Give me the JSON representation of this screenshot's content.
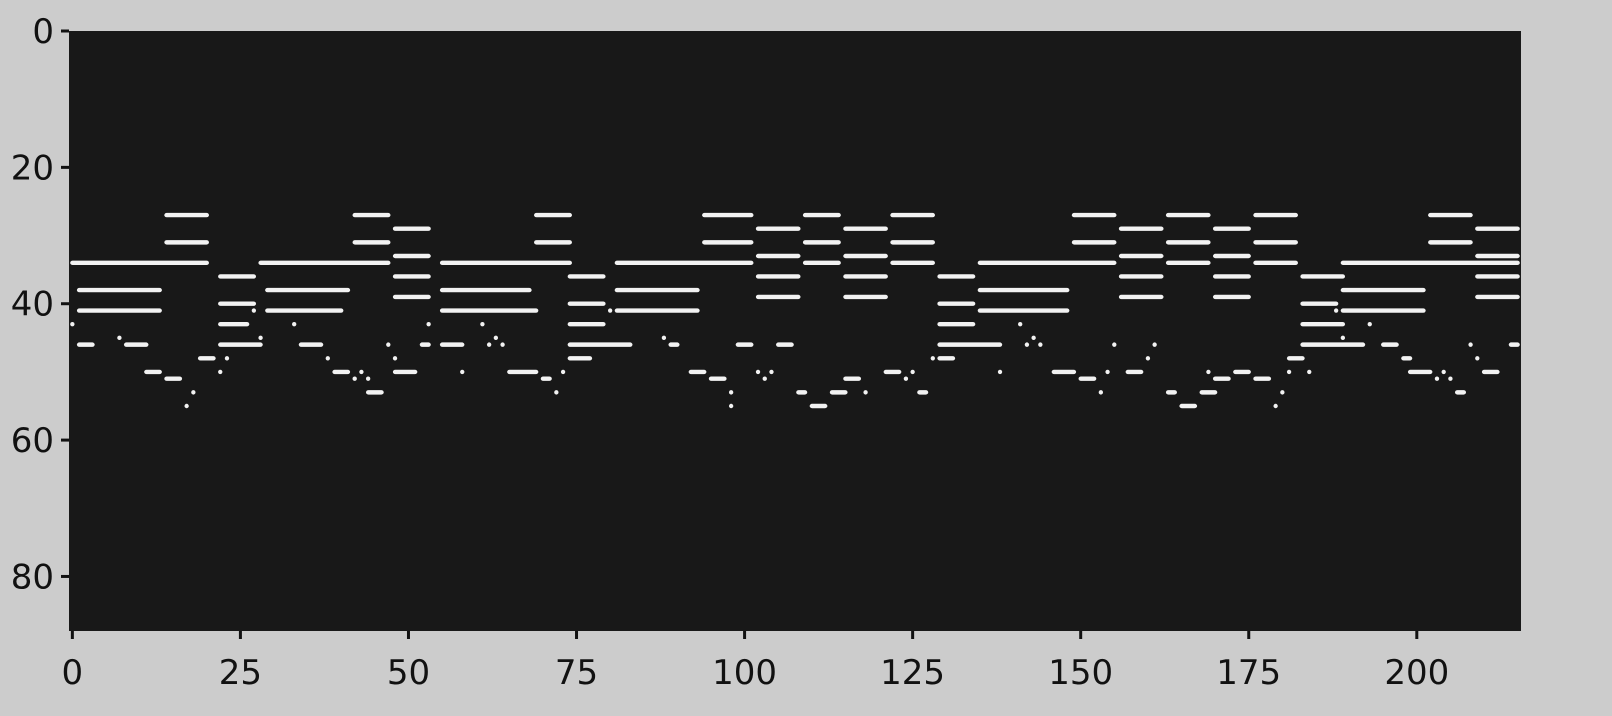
{
  "chart_data": {
    "type": "heatmap",
    "title": "",
    "xlabel": "",
    "ylabel": "",
    "xlim": [
      -0.5,
      215.5
    ],
    "ylim": [
      88,
      0
    ],
    "xticks": [
      0,
      25,
      50,
      75,
      100,
      125,
      150,
      175,
      200
    ],
    "yticks": [
      0,
      20,
      40,
      60,
      80
    ],
    "grid": false,
    "colors": {
      "background": "#181818",
      "note": "#f2f2f2",
      "figure": "#cccccc"
    },
    "notes": [
      [
        27,
        14,
        21
      ],
      [
        31,
        14,
        21
      ],
      [
        34,
        0,
        21
      ],
      [
        38,
        1,
        14
      ],
      [
        41,
        1,
        14
      ],
      [
        43,
        0,
        1
      ],
      [
        45,
        7,
        8
      ],
      [
        46,
        1,
        4
      ],
      [
        46,
        8,
        12
      ],
      [
        50,
        11,
        14
      ],
      [
        51,
        14,
        17
      ],
      [
        53,
        18,
        19
      ],
      [
        55,
        17,
        18
      ],
      [
        48,
        19,
        22
      ],
      [
        50,
        22,
        23
      ],
      [
        48,
        23,
        24
      ],
      [
        36,
        22,
        28
      ],
      [
        40,
        22,
        28
      ],
      [
        43,
        22,
        27
      ],
      [
        41,
        27,
        28
      ],
      [
        46,
        22,
        29
      ],
      [
        45,
        28,
        29
      ],
      [
        34,
        28,
        48
      ],
      [
        38,
        29,
        42
      ],
      [
        41,
        29,
        41
      ],
      [
        43,
        33,
        34
      ],
      [
        46,
        34,
        38
      ],
      [
        48,
        38,
        39
      ],
      [
        50,
        39,
        42
      ],
      [
        51,
        42,
        43
      ],
      [
        50,
        43,
        44
      ],
      [
        51,
        44,
        45
      ],
      [
        53,
        44,
        47
      ],
      [
        27,
        42,
        48
      ],
      [
        31,
        42,
        48
      ],
      [
        46,
        47,
        48
      ],
      [
        48,
        48,
        49
      ],
      [
        50,
        48,
        52
      ],
      [
        29,
        48,
        54
      ],
      [
        33,
        48,
        54
      ],
      [
        36,
        48,
        54
      ],
      [
        39,
        48,
        54
      ],
      [
        43,
        53,
        54
      ],
      [
        46,
        52,
        54
      ],
      [
        34,
        55,
        75
      ],
      [
        38,
        55,
        69
      ],
      [
        41,
        55,
        70
      ],
      [
        46,
        55,
        59
      ],
      [
        43,
        61,
        62
      ],
      [
        46,
        62,
        63
      ],
      [
        45,
        63,
        64
      ],
      [
        46,
        64,
        65
      ],
      [
        50,
        58,
        59
      ],
      [
        50,
        65,
        70
      ],
      [
        51,
        70,
        72
      ],
      [
        53,
        72,
        73
      ],
      [
        50,
        73,
        74
      ],
      [
        27,
        69,
        75
      ],
      [
        31,
        69,
        75
      ],
      [
        48,
        74,
        78
      ],
      [
        36,
        74,
        80
      ],
      [
        40,
        74,
        80
      ],
      [
        43,
        74,
        80
      ],
      [
        41,
        80,
        81
      ],
      [
        46,
        74,
        84
      ],
      [
        34,
        81,
        102
      ],
      [
        38,
        81,
        94
      ],
      [
        41,
        81,
        94
      ],
      [
        45,
        88,
        89
      ],
      [
        46,
        89,
        91
      ],
      [
        50,
        92,
        95
      ],
      [
        51,
        95,
        98
      ],
      [
        53,
        98,
        99
      ],
      [
        55,
        98,
        99
      ],
      [
        27,
        94,
        102
      ],
      [
        31,
        94,
        102
      ],
      [
        46,
        99,
        102
      ],
      [
        50,
        102,
        103
      ],
      [
        51,
        103,
        104
      ],
      [
        50,
        104,
        105
      ],
      [
        29,
        102,
        109
      ],
      [
        33,
        102,
        109
      ],
      [
        36,
        102,
        109
      ],
      [
        39,
        102,
        109
      ],
      [
        46,
        105,
        108
      ],
      [
        27,
        109,
        115
      ],
      [
        31,
        109,
        115
      ],
      [
        34,
        109,
        115
      ],
      [
        53,
        108,
        110
      ],
      [
        55,
        110,
        113
      ],
      [
        53,
        113,
        116
      ],
      [
        29,
        115,
        122
      ],
      [
        33,
        115,
        122
      ],
      [
        36,
        115,
        122
      ],
      [
        39,
        115,
        122
      ],
      [
        51,
        115,
        118
      ],
      [
        53,
        118,
        119
      ],
      [
        27,
        122,
        129
      ],
      [
        31,
        122,
        129
      ],
      [
        34,
        122,
        129
      ],
      [
        50,
        121,
        124
      ],
      [
        51,
        124,
        125
      ],
      [
        50,
        125,
        126
      ],
      [
        53,
        126,
        128
      ],
      [
        48,
        128,
        129
      ],
      [
        36,
        129,
        135
      ],
      [
        40,
        129,
        135
      ],
      [
        43,
        129,
        135
      ],
      [
        48,
        129,
        132
      ],
      [
        46,
        129,
        139
      ],
      [
        34,
        135,
        156
      ],
      [
        38,
        135,
        149
      ],
      [
        41,
        135,
        149
      ],
      [
        43,
        141,
        142
      ],
      [
        46,
        142,
        143
      ],
      [
        45,
        143,
        144
      ],
      [
        46,
        144,
        145
      ],
      [
        50,
        138,
        139
      ],
      [
        50,
        146,
        150
      ],
      [
        51,
        150,
        153
      ],
      [
        53,
        153,
        154
      ],
      [
        50,
        154,
        155
      ],
      [
        27,
        149,
        156
      ],
      [
        31,
        149,
        156
      ],
      [
        46,
        155,
        156
      ],
      [
        29,
        156,
        163
      ],
      [
        33,
        156,
        163
      ],
      [
        36,
        156,
        163
      ],
      [
        39,
        156,
        163
      ],
      [
        50,
        157,
        160
      ],
      [
        48,
        160,
        161
      ],
      [
        46,
        161,
        162
      ],
      [
        27,
        163,
        170
      ],
      [
        31,
        163,
        170
      ],
      [
        34,
        163,
        170
      ],
      [
        53,
        163,
        165
      ],
      [
        55,
        165,
        168
      ],
      [
        53,
        168,
        171
      ],
      [
        29,
        170,
        176
      ],
      [
        33,
        170,
        176
      ],
      [
        36,
        170,
        176
      ],
      [
        39,
        170,
        176
      ],
      [
        50,
        169,
        170
      ],
      [
        51,
        170,
        173
      ],
      [
        50,
        173,
        176
      ],
      [
        27,
        176,
        183
      ],
      [
        31,
        176,
        183
      ],
      [
        34,
        176,
        183
      ],
      [
        51,
        176,
        179
      ],
      [
        55,
        179,
        180
      ],
      [
        53,
        180,
        181
      ],
      [
        50,
        181,
        182
      ],
      [
        48,
        181,
        184
      ],
      [
        50,
        184,
        185
      ],
      [
        36,
        183,
        190
      ],
      [
        40,
        183,
        189
      ],
      [
        43,
        183,
        190
      ],
      [
        41,
        188,
        189
      ],
      [
        45,
        189,
        190
      ],
      [
        46,
        183,
        193
      ],
      [
        34,
        189,
        216
      ],
      [
        38,
        189,
        202
      ],
      [
        41,
        189,
        202
      ],
      [
        43,
        193,
        194
      ],
      [
        46,
        195,
        198
      ],
      [
        48,
        198,
        200
      ],
      [
        50,
        199,
        203
      ],
      [
        51,
        203,
        204
      ],
      [
        50,
        204,
        205
      ],
      [
        51,
        205,
        206
      ],
      [
        53,
        206,
        208
      ],
      [
        27,
        202,
        209
      ],
      [
        31,
        202,
        209
      ],
      [
        46,
        208,
        209
      ],
      [
        48,
        209,
        210
      ],
      [
        50,
        210,
        213
      ],
      [
        29,
        209,
        216
      ],
      [
        33,
        209,
        216
      ],
      [
        36,
        209,
        216
      ],
      [
        39,
        209,
        216
      ],
      [
        46,
        214,
        216
      ]
    ]
  }
}
